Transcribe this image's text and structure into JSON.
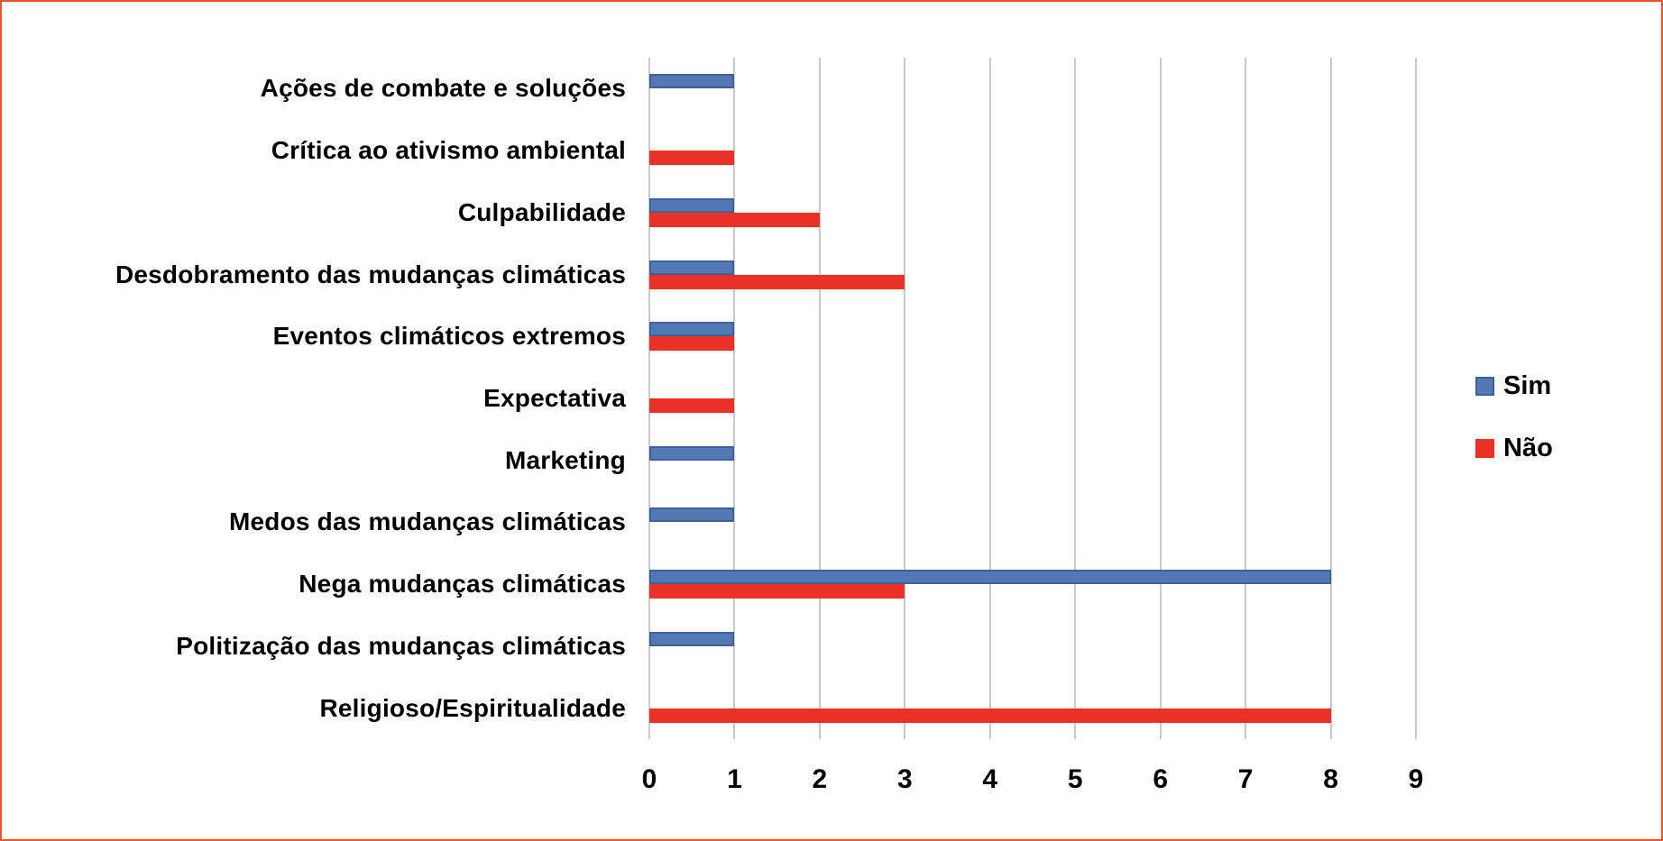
{
  "frame": {
    "background_color": "#FFFFFF",
    "border_color": "#E4572E"
  },
  "legend": {
    "items": [
      {
        "label": "Sim",
        "color": "#5279B4",
        "border_color": "#3E6398"
      },
      {
        "label": "Não",
        "color": "#E93128",
        "border_color": "#E93128"
      }
    ]
  },
  "chart_data": {
    "type": "bar",
    "orientation": "horizontal",
    "title": "",
    "xlabel": "",
    "ylabel": "",
    "categories": [
      "Ações de combate e soluções",
      "Crítica ao ativismo ambiental",
      "Culpabilidade",
      "Desdobramento das mudanças climáticas",
      "Eventos climáticos extremos",
      "Expectativa",
      "Marketing",
      "Medos das mudanças climáticas",
      "Nega mudanças climáticas",
      "Politização das mudanças climáticas",
      "Religioso/Espiritualidade"
    ],
    "series": [
      {
        "name": "Sim",
        "color": "#5279B4",
        "border_color": "#3E6398",
        "values": [
          1,
          0,
          1,
          1,
          1,
          0,
          1,
          1,
          8,
          1,
          0
        ]
      },
      {
        "name": "Não",
        "color": "#E93128",
        "border_color": "#E93128",
        "values": [
          0,
          1,
          2,
          3,
          1,
          1,
          0,
          0,
          3,
          0,
          8
        ]
      }
    ],
    "xlim": [
      0,
      9
    ],
    "xticks": [
      "0",
      "1",
      "2",
      "3",
      "4",
      "5",
      "6",
      "7",
      "8",
      "9"
    ],
    "grid": true,
    "gridline_color": "#C9C9C9",
    "legend_position": "right-middle"
  }
}
